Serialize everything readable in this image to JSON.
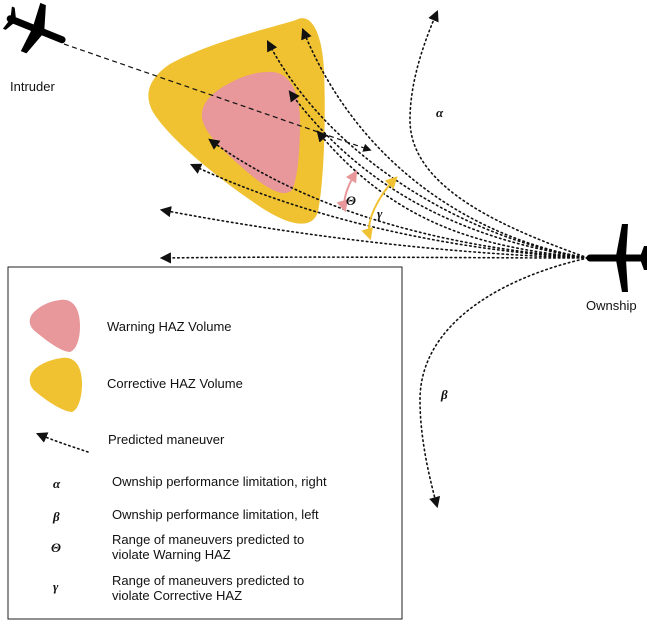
{
  "labels": {
    "intruder": "Intruder",
    "ownship": "Ownship",
    "alpha": "α",
    "beta": "β",
    "theta": "Θ",
    "gamma": "γ"
  },
  "legend": {
    "warning": "Warning HAZ Volume",
    "corrective": "Corrective HAZ Volume",
    "predicted": "Predicted maneuver",
    "alpha_sym": "α",
    "alpha_desc": "Ownship performance limitation, right",
    "beta_sym": "β",
    "beta_desc": "Ownship performance limitation, left",
    "theta_sym": "Θ",
    "theta_desc_1": "Range of maneuvers predicted to",
    "theta_desc_2": "violate Warning HAZ",
    "gamma_sym": "γ",
    "gamma_desc_1": "Range of maneuvers predicted to",
    "gamma_desc_2": "violate Corrective HAZ"
  },
  "colors": {
    "warning_haz": "#e8979a",
    "corrective_haz": "#f0c232",
    "theta_arc": "#e8979a",
    "gamma_arc": "#f0c232",
    "aircraft": "#000000"
  },
  "icons": {
    "intruder": "airplane-icon",
    "ownship": "airplane-icon",
    "predicted_maneuver": "dotted-arrow-icon"
  }
}
